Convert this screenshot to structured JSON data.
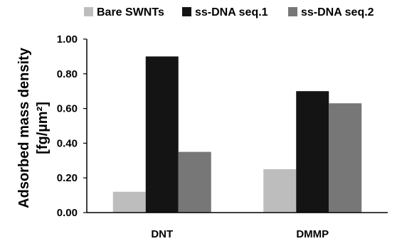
{
  "chart_data": {
    "type": "bar",
    "categories": [
      "DNT",
      "DMMP"
    ],
    "series": [
      {
        "name": "Bare SWNTs",
        "values": [
          0.12,
          0.25
        ],
        "color": "#bdbdbd"
      },
      {
        "name": "ss-DNA seq.1",
        "values": [
          0.9,
          0.7
        ],
        "color": "#141414"
      },
      {
        "name": "ss-DNA seq.2",
        "values": [
          0.35,
          0.63
        ],
        "color": "#777777"
      }
    ],
    "ylabel_line1": "Adsorbed mass density",
    "ylabel_line2": "[fg/µm²]",
    "ylim": [
      0,
      1.0
    ],
    "yticks": [
      "0.00",
      "0.20",
      "0.40",
      "0.60",
      "0.80",
      "1.00"
    ],
    "ytick_values": [
      0,
      0.2,
      0.4,
      0.6,
      0.8,
      1.0
    ],
    "grid": false,
    "legend_position": "top"
  }
}
